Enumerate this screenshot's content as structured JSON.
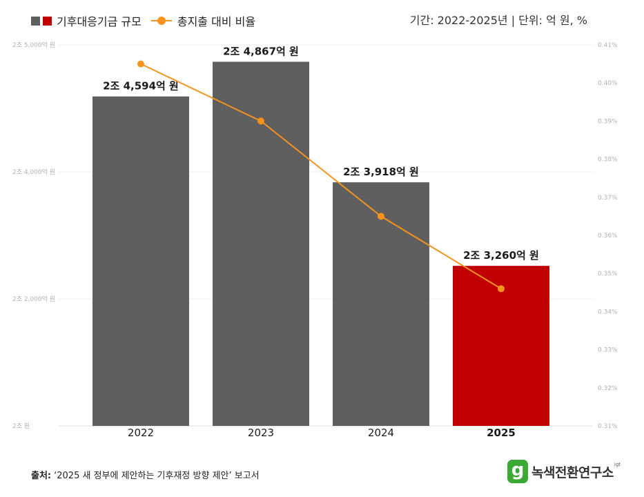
{
  "legend": {
    "bar_label": "기후대응기금 규모",
    "line_label": "총지출 대비 비율",
    "swatch_colors": [
      "#5f5f5f",
      "#c00000"
    ],
    "line_color": "#f7931e"
  },
  "meta": "기간: 2022-2025년 | 단위: 억 원, %",
  "chart_data": {
    "type": "bar",
    "categories": [
      "2022",
      "2023",
      "2024",
      "2025"
    ],
    "x_label_bold": [
      false,
      false,
      false,
      true
    ],
    "series": [
      {
        "name": "기후대응기금 규모",
        "type": "bar",
        "axis": "left",
        "values": [
          24594,
          24867,
          23918,
          23260
        ],
        "labels": [
          "2조 4,594억 원",
          "2조 4,867억 원",
          "2조 3,918억 원",
          "2조 3,260억 원"
        ],
        "colors": [
          "#5f5f5f",
          "#5f5f5f",
          "#5f5f5f",
          "#c00000"
        ]
      },
      {
        "name": "총지출 대비 비율",
        "type": "line",
        "axis": "right",
        "values": [
          0.405,
          0.39,
          0.365,
          0.346
        ],
        "color": "#f7931e"
      }
    ],
    "y_left": {
      "ylim": [
        22000,
        25000
      ],
      "tick_labels": [
        "2조 5,000억 원",
        "2조 4,000억 원",
        "2조 2,000억 원",
        "2조 원"
      ]
    },
    "y_right": {
      "ylim": [
        0.31,
        0.41
      ],
      "tick_labels": [
        "0.41%",
        "0.40%",
        "0.39%",
        "0.38%",
        "0.37%",
        "0.36%",
        "0.35%",
        "0.34%",
        "0.33%",
        "0.32%",
        "0.31%"
      ]
    },
    "grid": true,
    "legend_position": "top-left"
  },
  "source": {
    "label": "출처:",
    "text": "‘2025 새 정부에 제안하는 기후재정 방향 제안’ 보고서"
  },
  "logo": {
    "mark": "g",
    "text": "녹색전환연구소",
    "suffix": "igt",
    "color": "#3aaa35"
  }
}
